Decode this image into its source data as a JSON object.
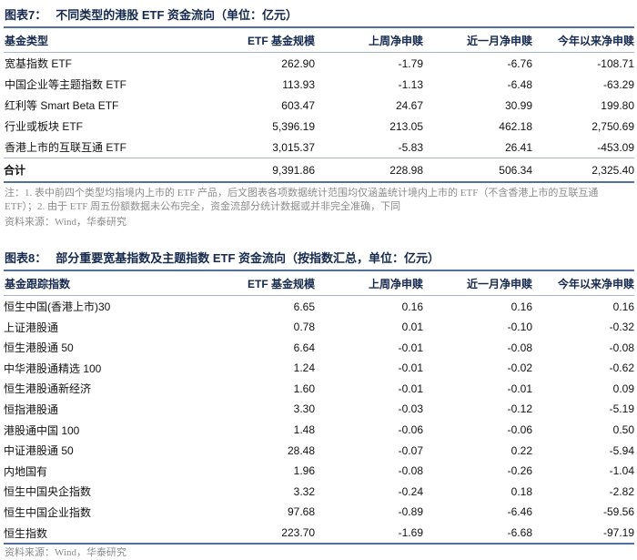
{
  "colors": {
    "rule_thick": "#52709e",
    "rule_thin": "#a6b5d2",
    "heading_text": "#14294d",
    "body_text": "#121212",
    "note_text": "#8c8c8c"
  },
  "table7": {
    "title_label": "图表7：",
    "title_text": "不同类型的港股 ETF 资金流向（单位：亿元）",
    "columns": [
      "基金类型",
      "ETF 基金规模",
      "上周净申赎",
      "近一月净申赎",
      "今年以来净申赎"
    ],
    "rows": [
      [
        "宽基指数 ETF",
        "262.90",
        "-1.79",
        "-6.76",
        "-108.71"
      ],
      [
        "中国企业等主题指数 ETF",
        "113.93",
        "-1.13",
        "-6.48",
        "-63.29"
      ],
      [
        "红利等 Smart Beta ETF",
        "603.47",
        "24.67",
        "30.99",
        "199.80"
      ],
      [
        "行业或板块 ETF",
        "5,396.19",
        "213.05",
        "462.18",
        "2,750.69"
      ],
      [
        "香港上市的互联互通 ETF",
        "3,015.37",
        "-5.83",
        "26.41",
        "-453.09"
      ]
    ],
    "total_row": [
      "合计",
      "9,391.86",
      "228.98",
      "506.34",
      "2,325.40"
    ],
    "note": "注：1. 表中前四个类型均指境内上市的 ETF 产品，后文图表各项数据统计范围均仅涵盖统计境内上市的 ETF（不含香港上市的互联互通 ETF）；2. 由于 ETF 周五份额数据未公布完全，资金流部分统计数据或并非完全准确，下同",
    "source": "资料来源：Wind，华泰研究"
  },
  "table8": {
    "title_label": "图表8：",
    "title_text": "部分重要宽基指数及主题指数 ETF 资金流向（按指数汇总，单位：亿元）",
    "columns": [
      "基金跟踪指数",
      "ETF 基金规模",
      "上周净申赎",
      "近一月净申赎",
      "今年以来净申赎"
    ],
    "rows": [
      [
        "恒生中国(香港上市)30",
        "6.65",
        "0.16",
        "0.16",
        "0.16"
      ],
      [
        "上证港股通",
        "0.78",
        "0.01",
        "-0.10",
        "-0.32"
      ],
      [
        "恒生港股通 50",
        "6.64",
        "-0.01",
        "-0.08",
        "-0.08"
      ],
      [
        "中华港股通精选 100",
        "1.24",
        "-0.01",
        "-0.02",
        "-0.62"
      ],
      [
        "恒生港股通新经济",
        "1.60",
        "-0.01",
        "-0.01",
        "0.09"
      ],
      [
        "恒指港股通",
        "3.30",
        "-0.03",
        "-0.12",
        "-5.19"
      ],
      [
        "港股通中国 100",
        "1.48",
        "-0.06",
        "-0.06",
        "0.50"
      ],
      [
        "中证港股通 50",
        "28.48",
        "-0.07",
        "0.22",
        "-5.94"
      ],
      [
        "内地国有",
        "1.96",
        "-0.08",
        "-0.26",
        "-1.04"
      ],
      [
        "恒生中国央企指数",
        "3.32",
        "-0.24",
        "0.18",
        "-2.82"
      ],
      [
        "恒生中国企业指数",
        "97.68",
        "-0.89",
        "-6.46",
        "-59.56"
      ],
      [
        "恒生指数",
        "223.70",
        "-1.69",
        "-6.68",
        "-97.19"
      ]
    ],
    "source": "资料来源：Wind，华泰研究"
  }
}
